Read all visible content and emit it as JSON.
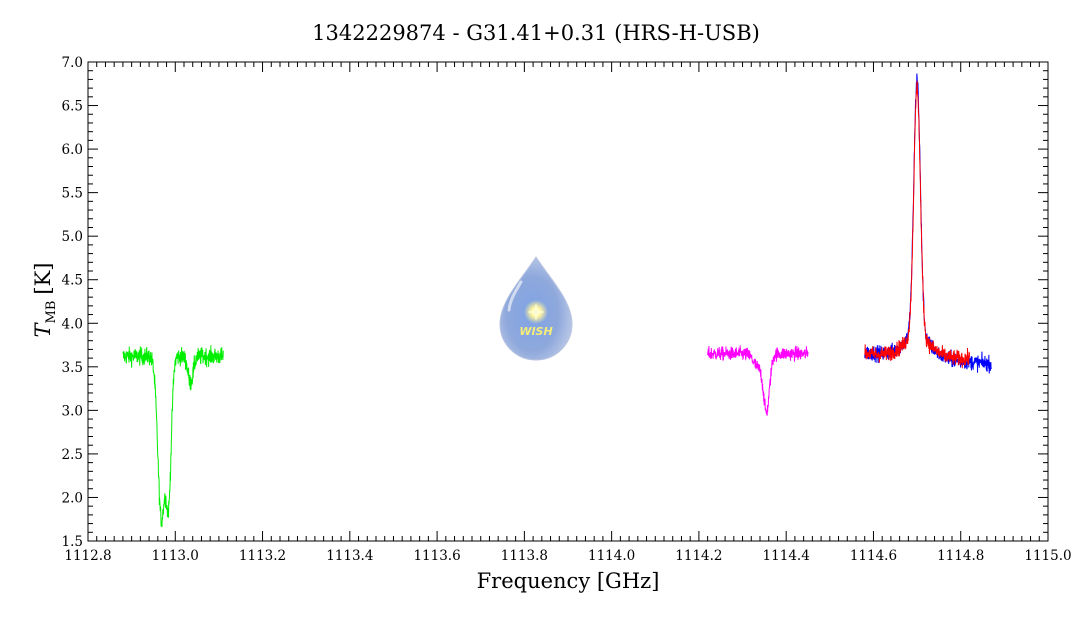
{
  "chart_data": {
    "type": "line",
    "title": "1342229874 - G31.41+0.31 (HRS-H-USB)",
    "xlabel": "Frequency [GHz]",
    "ylabel_main": "T",
    "ylabel_sub": "MB",
    "ylabel_unit": "[K]",
    "xlim": [
      1112.8,
      1115.0
    ],
    "ylim": [
      1.5,
      7.0
    ],
    "x_ticks": [
      "1112.8",
      "1113.0",
      "1113.2",
      "1113.4",
      "1113.6",
      "1113.8",
      "1114.0",
      "1114.2",
      "1114.4",
      "1114.6",
      "1114.8",
      "1115.0"
    ],
    "y_ticks": [
      "1.5",
      "2.0",
      "2.5",
      "3.0",
      "3.5",
      "4.0",
      "4.5",
      "5.0",
      "5.5",
      "6.0",
      "6.5",
      "7.0"
    ],
    "grid": false,
    "logo_text": "WISH",
    "series": [
      {
        "color": "#00ee00",
        "x_range": [
          1112.88,
          1113.11
        ],
        "baseline": 3.62,
        "noise": 0.09,
        "features": [
          {
            "center": 1112.968,
            "width": 0.008,
            "depth": -1.85
          },
          {
            "center": 1112.985,
            "width": 0.006,
            "depth": -1.55
          },
          {
            "center": 1113.035,
            "width": 0.006,
            "depth": -0.3
          }
        ]
      },
      {
        "color": "#ff00ff",
        "x_range": [
          1114.22,
          1114.45
        ],
        "baseline": 3.65,
        "noise": 0.07,
        "features": [
          {
            "center": 1114.355,
            "width": 0.007,
            "depth": -0.65
          },
          {
            "center": 1114.335,
            "width": 0.01,
            "depth": -0.15
          }
        ]
      },
      {
        "color": "#0000ff",
        "x_range": [
          1114.58,
          1114.87
        ],
        "baseline": 3.6,
        "noise": 0.08,
        "slope": -0.45,
        "features": [
          {
            "center": 1114.7,
            "width": 0.0075,
            "depth": 2.95
          },
          {
            "center": 1114.7,
            "width": 0.03,
            "depth": 0.25
          }
        ]
      },
      {
        "color": "#ff0000",
        "x_range": [
          1114.58,
          1114.82
        ],
        "baseline": 3.62,
        "noise": 0.08,
        "slope": -0.25,
        "features": [
          {
            "center": 1114.7,
            "width": 0.0075,
            "depth": 2.88
          },
          {
            "center": 1114.7,
            "width": 0.03,
            "depth": 0.22
          }
        ]
      }
    ]
  }
}
